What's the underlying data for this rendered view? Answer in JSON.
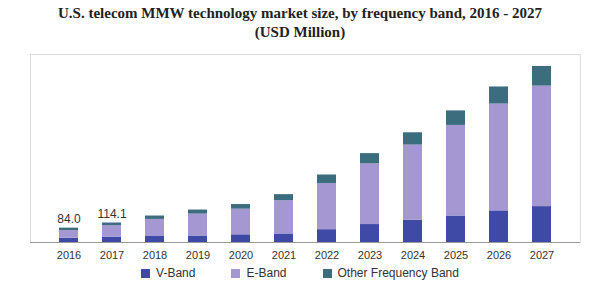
{
  "chart_data": {
    "type": "bar",
    "title": "U.S. telecom MMW technology market size, by frequency band, 2016 - 2027",
    "subtitle": "(USD Million)",
    "categories": [
      "2016",
      "2017",
      "2018",
      "2019",
      "2020",
      "2021",
      "2022",
      "2023",
      "2024",
      "2025",
      "2026",
      "2027"
    ],
    "series": [
      {
        "name": "V-Band",
        "color": "#3f49a6",
        "values": [
          25,
          30,
          35,
          38,
          45,
          50,
          75,
          105,
          130,
          155,
          185,
          210
        ]
      },
      {
        "name": "E-Band",
        "color": "#a598d2",
        "values": [
          45,
          68,
          100,
          128,
          150,
          195,
          270,
          355,
          440,
          530,
          625,
          705
        ]
      },
      {
        "name": "Other Frequency Band",
        "color": "#3b6d7f",
        "values": [
          14,
          16.1,
          20,
          24,
          27,
          35,
          50,
          60,
          72,
          85,
          100,
          115
        ]
      }
    ],
    "annotations": [
      {
        "category": "2016",
        "value": 84.0,
        "text": "84.0"
      },
      {
        "category": "2017",
        "value": 114.1,
        "text": "114.1"
      }
    ],
    "stacked": true,
    "ylim": [
      0,
      1100
    ],
    "tick_labels": "x",
    "grid": false,
    "legend": "bottom"
  }
}
